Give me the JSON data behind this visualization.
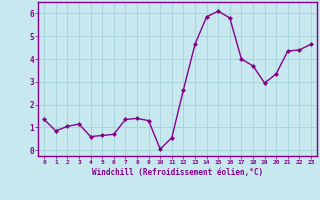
{
  "x": [
    0,
    1,
    2,
    3,
    4,
    5,
    6,
    7,
    8,
    9,
    10,
    11,
    12,
    13,
    14,
    15,
    16,
    17,
    18,
    19,
    20,
    21,
    22,
    23
  ],
  "y": [
    1.35,
    0.85,
    1.05,
    1.15,
    0.6,
    0.65,
    0.7,
    1.35,
    1.4,
    1.3,
    0.05,
    0.55,
    2.65,
    4.65,
    5.85,
    6.1,
    5.8,
    4.0,
    3.7,
    2.95,
    3.35,
    4.35,
    4.4,
    4.65
  ],
  "line_color": "#880088",
  "marker": "D",
  "marker_size": 2.0,
  "bg_color": "#c8e8f0",
  "grid_color": "#aad4dc",
  "xlabel": "Windchill (Refroidissement éolien,°C)",
  "xlim": [
    -0.5,
    23.5
  ],
  "ylim": [
    -0.25,
    6.5
  ],
  "yticks": [
    0,
    1,
    2,
    3,
    4,
    5,
    6
  ],
  "xticks": [
    0,
    1,
    2,
    3,
    4,
    5,
    6,
    7,
    8,
    9,
    10,
    11,
    12,
    13,
    14,
    15,
    16,
    17,
    18,
    19,
    20,
    21,
    22,
    23
  ],
  "xlabel_color": "#880088",
  "tick_color": "#880088",
  "axis_color": "#880088"
}
